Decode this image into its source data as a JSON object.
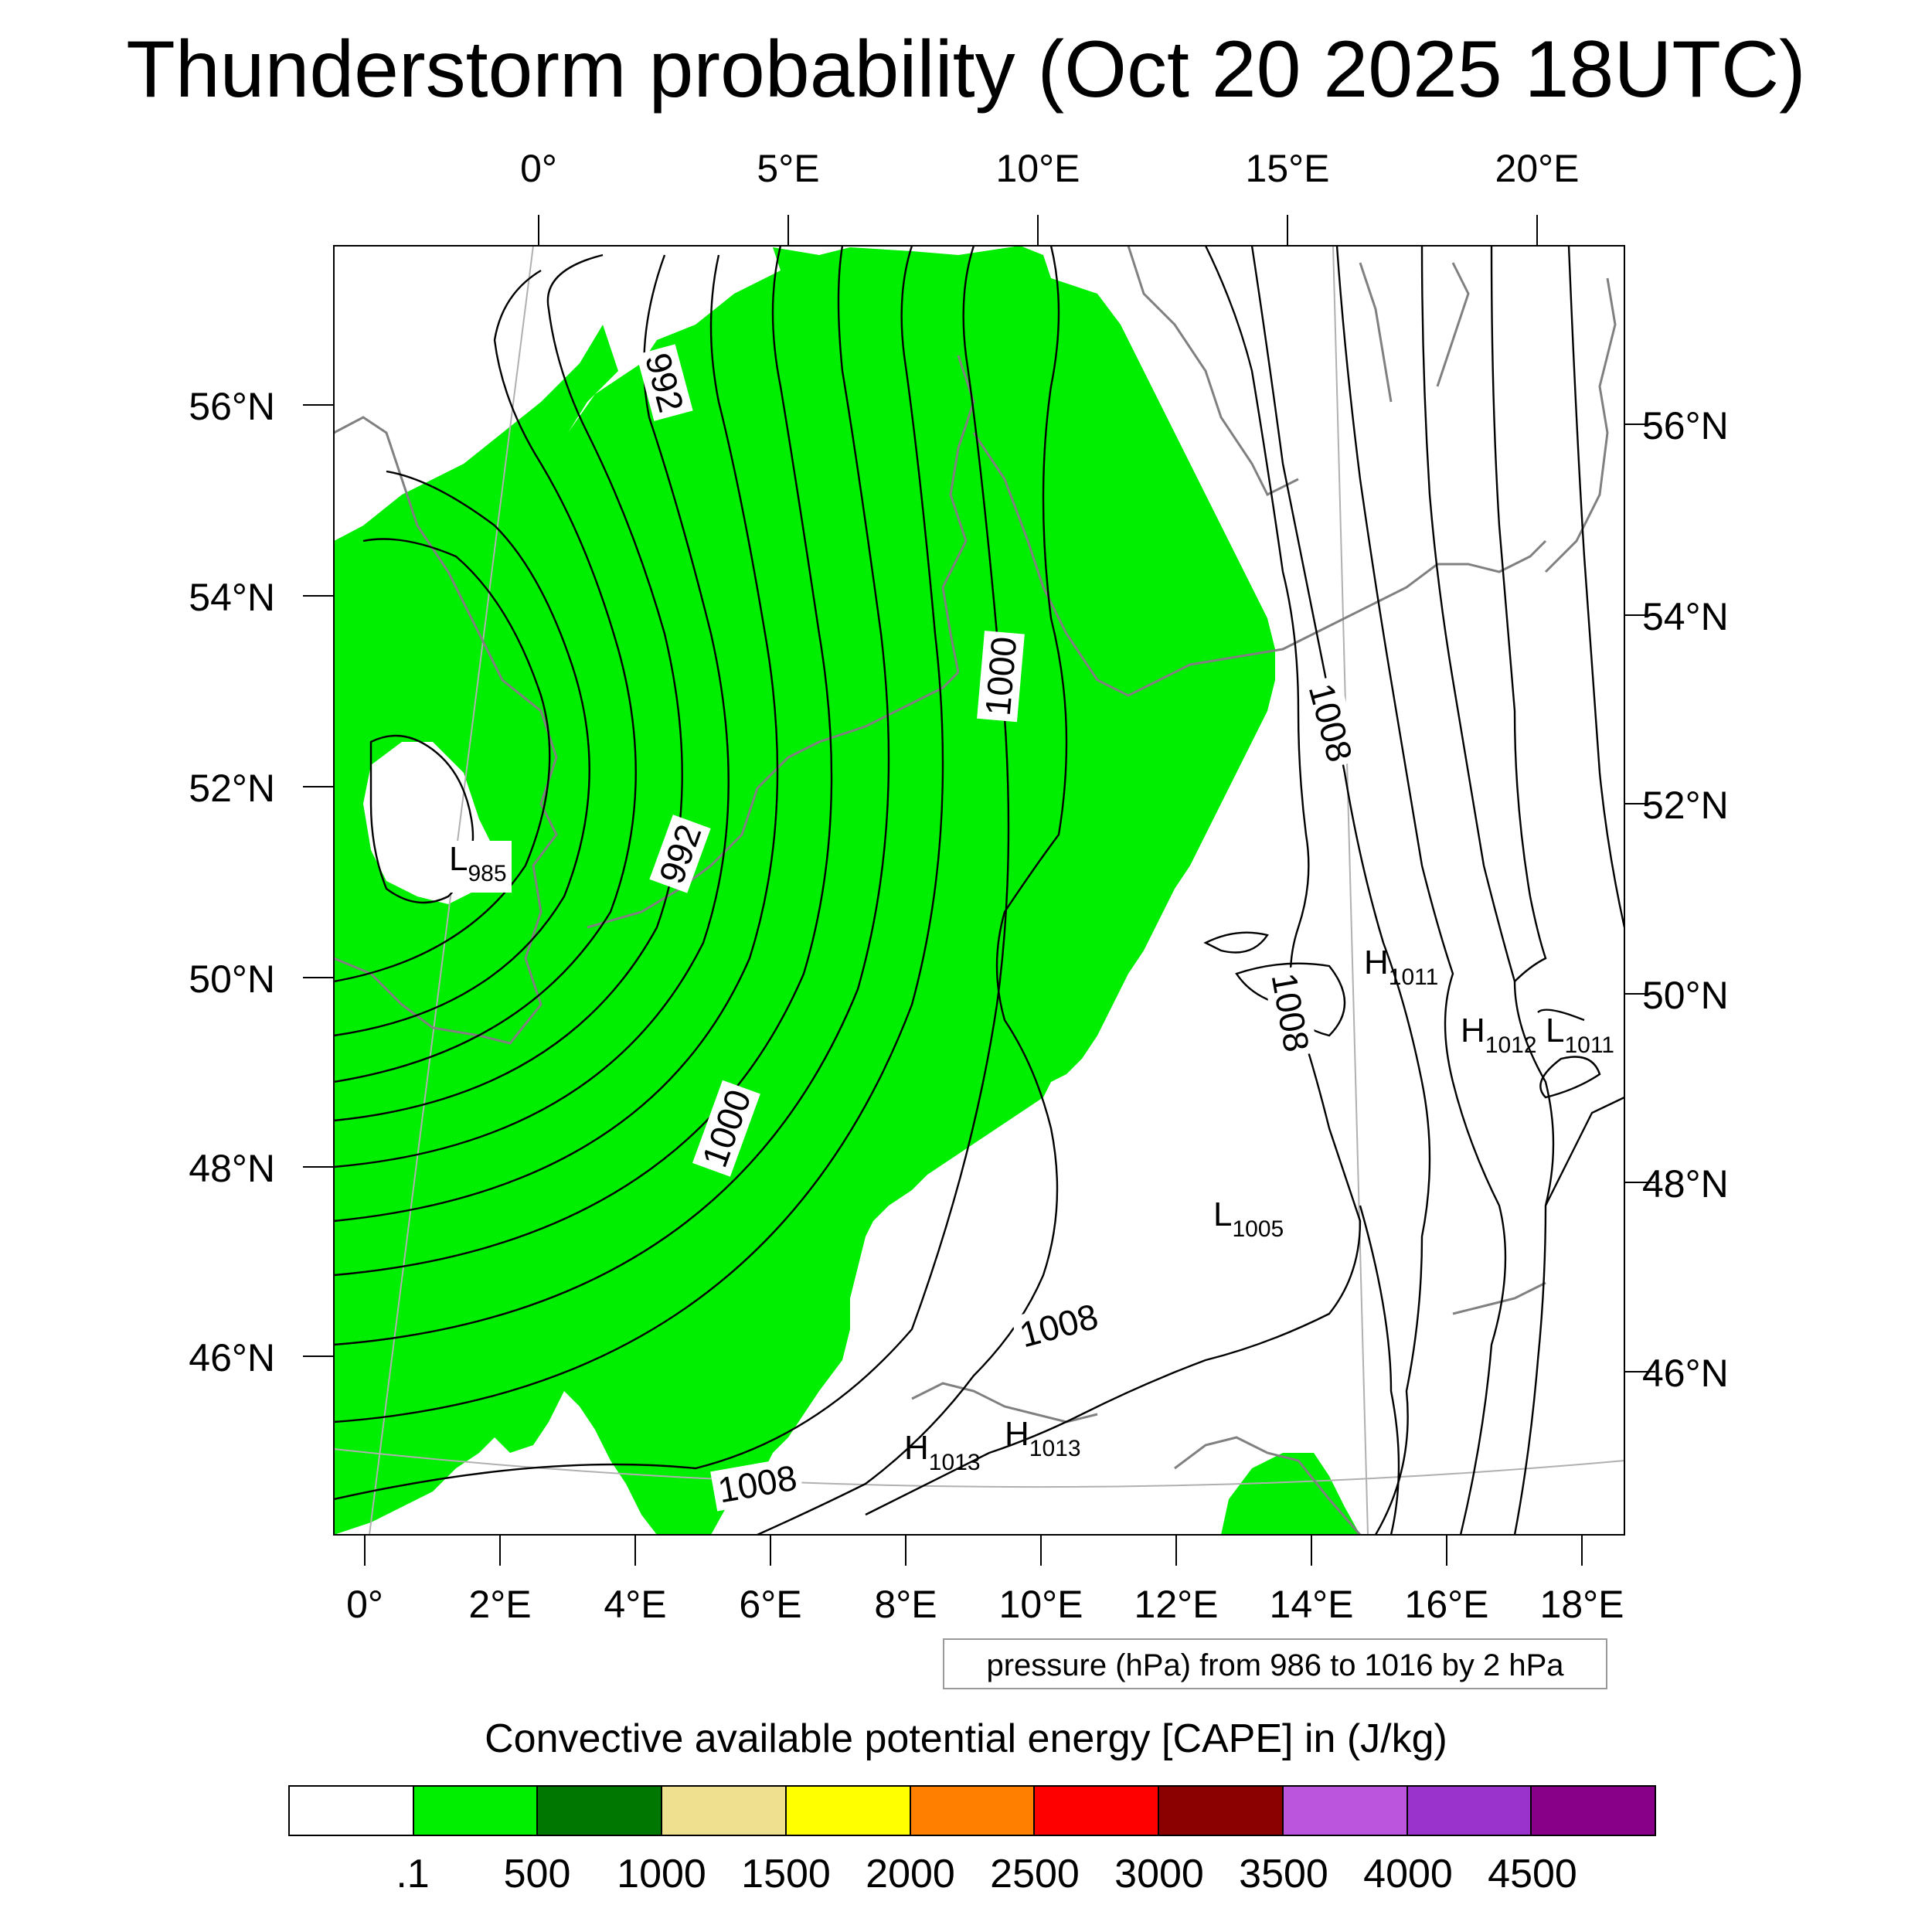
{
  "title": "Thunderstorm probability (Oct 20 2025 18UTC)",
  "top_axis_labels": [
    "0°",
    "5°E",
    "10°E",
    "15°E",
    "20°E"
  ],
  "bottom_axis_labels": [
    "0°",
    "2°E",
    "4°E",
    "6°E",
    "8°E",
    "10°E",
    "12°E",
    "14°E",
    "16°E",
    "18°E"
  ],
  "left_axis_labels": [
    "56°N",
    "54°N",
    "52°N",
    "50°N",
    "48°N",
    "46°N"
  ],
  "right_axis_labels": [
    "56°N",
    "54°N",
    "52°N",
    "50°N",
    "48°N",
    "46°N"
  ],
  "isobar_labels": [
    "992",
    "1000",
    "1008",
    "992",
    "1008",
    "1000",
    "1008",
    "1008"
  ],
  "pressure_marks": [
    {
      "letter": "L",
      "value": "985"
    },
    {
      "letter": "H",
      "value": "1011"
    },
    {
      "letter": "H",
      "value": "1012"
    },
    {
      "letter": "L",
      "value": "1011"
    },
    {
      "letter": "L",
      "value": "1005"
    },
    {
      "letter": "H",
      "value": "1013"
    },
    {
      "letter": "H",
      "value": "1013"
    }
  ],
  "contour_info": "pressure (hPa) from 986 to 1016 by 2 hPa",
  "colorbar": {
    "title": "Convective available potential energy [CAPE] in (J/kg)",
    "labels": [
      ".1",
      "500",
      "1000",
      "1500",
      "2000",
      "2500",
      "3000",
      "3500",
      "4000",
      "4500"
    ],
    "colors": [
      "#ffffff",
      "#00ee00",
      "#007700",
      "#eee08f",
      "#ffff00",
      "#ff8000",
      "#ff0000",
      "#8b0000",
      "#bb55dd",
      "#9933cc",
      "#880088"
    ]
  },
  "colors": {
    "cape_green": "#00ee00",
    "isobar": "#000000",
    "coastline": "#808080",
    "graticule": "#b0b0b0"
  }
}
